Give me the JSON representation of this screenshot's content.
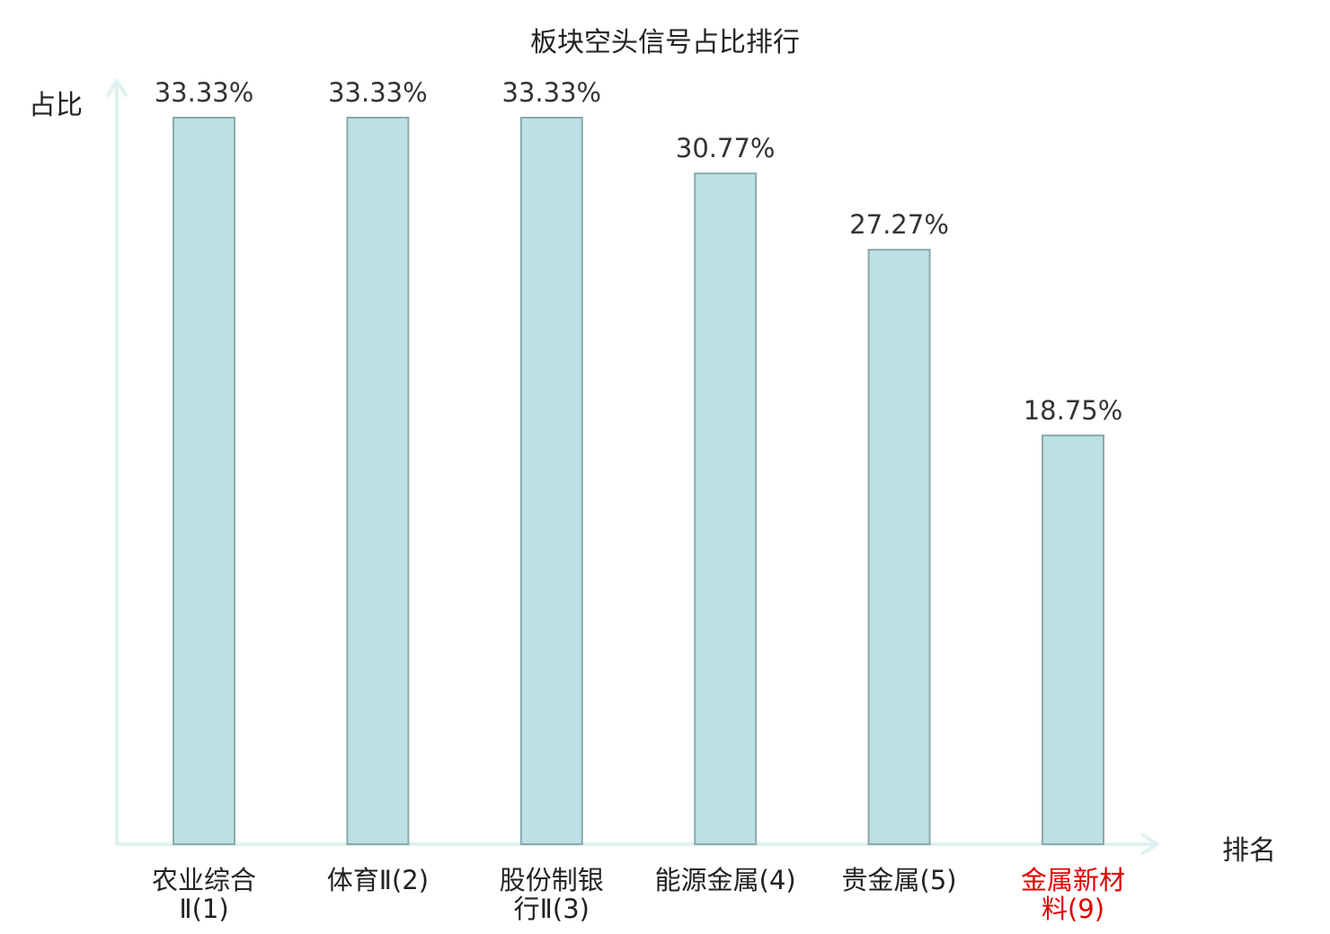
{
  "chart_data": {
    "type": "bar",
    "title": "板块空头信号占比排行",
    "ylabel": "占比",
    "xlabel": "排名",
    "categories": [
      {
        "line1": "农业综合",
        "line2": "Ⅱ(1)"
      },
      {
        "line1": "体育Ⅱ(2)",
        "line2": ""
      },
      {
        "line1": "股份制银",
        "line2": "行Ⅱ(3)"
      },
      {
        "line1": "能源金属(4)",
        "line2": ""
      },
      {
        "line1": "贵金属(5)",
        "line2": ""
      },
      {
        "line1": "金属新材",
        "line2": "料(9)"
      }
    ],
    "values": [
      33.33,
      33.33,
      33.33,
      30.77,
      27.27,
      18.75
    ],
    "value_labels": [
      "33.33%",
      "33.33%",
      "33.33%",
      "30.77%",
      "27.27%",
      "18.75%"
    ],
    "highlight_index": 5,
    "ylim": [
      0,
      33.33
    ],
    "colors": {
      "bar_fill": "#bce0e3",
      "bar_stroke": "#8aa9ab",
      "axis": "#dff1ef",
      "highlight_label": "#e00000",
      "text": "#222222"
    }
  }
}
